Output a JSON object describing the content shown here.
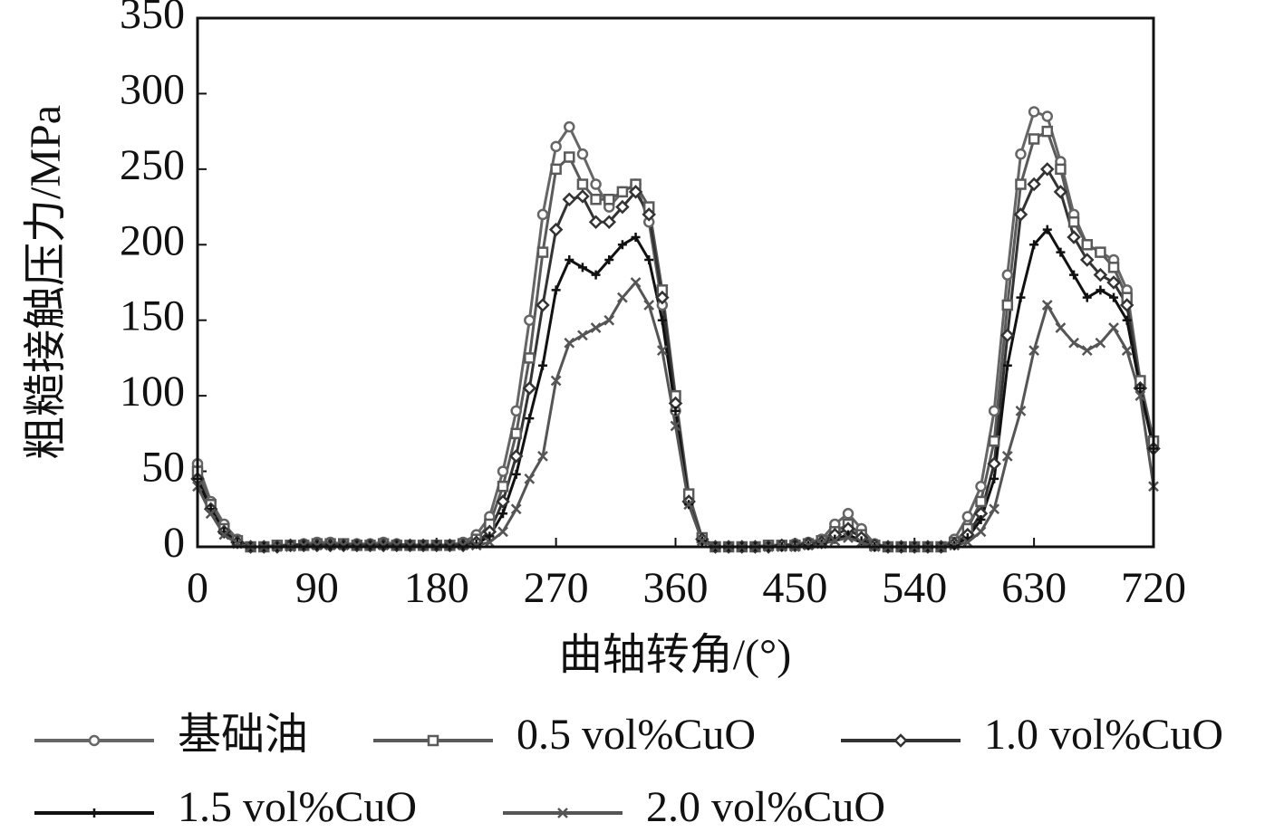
{
  "chart_data": {
    "type": "line",
    "xlabel": "曲轴转角/(°)",
    "ylabel": "粗糙接触压力/MPa",
    "x": [
      0,
      10,
      20,
      30,
      40,
      50,
      60,
      70,
      80,
      90,
      100,
      110,
      120,
      130,
      140,
      150,
      160,
      170,
      180,
      190,
      200,
      210,
      220,
      230,
      240,
      250,
      260,
      270,
      280,
      290,
      300,
      310,
      320,
      330,
      340,
      350,
      360,
      370,
      380,
      390,
      400,
      410,
      420,
      430,
      440,
      450,
      460,
      470,
      480,
      490,
      500,
      510,
      520,
      530,
      540,
      550,
      560,
      570,
      580,
      590,
      600,
      610,
      620,
      630,
      640,
      650,
      660,
      670,
      680,
      690,
      700,
      710,
      720
    ],
    "xlim": [
      0,
      720
    ],
    "xticks": [
      0,
      90,
      180,
      270,
      360,
      450,
      540,
      630,
      720
    ],
    "ylim": [
      0,
      350
    ],
    "yticks": [
      0,
      50,
      100,
      150,
      200,
      250,
      300,
      350
    ],
    "series": [
      {
        "name": "基础油",
        "color": "#666666",
        "marker": "circle",
        "values": [
          55,
          30,
          15,
          5,
          0,
          0,
          1,
          1,
          2,
          3,
          3,
          2,
          2,
          2,
          3,
          2,
          1,
          1,
          1,
          1,
          3,
          8,
          20,
          50,
          90,
          150,
          220,
          265,
          278,
          260,
          240,
          225,
          235,
          240,
          215,
          160,
          90,
          30,
          5,
          0,
          0,
          0,
          0,
          1,
          1,
          2,
          3,
          5,
          15,
          22,
          12,
          2,
          0,
          0,
          0,
          0,
          0,
          5,
          20,
          40,
          90,
          180,
          260,
          288,
          285,
          255,
          220,
          200,
          195,
          190,
          170,
          110,
          70
        ]
      },
      {
        "name": "0.5 vol%CuO",
        "color": "#5a5a5a",
        "marker": "square",
        "values": [
          50,
          28,
          12,
          4,
          0,
          0,
          1,
          1,
          1,
          2,
          2,
          2,
          1,
          1,
          2,
          1,
          1,
          1,
          1,
          1,
          2,
          5,
          15,
          40,
          75,
          125,
          195,
          250,
          258,
          240,
          230,
          230,
          235,
          240,
          225,
          170,
          100,
          35,
          6,
          0,
          0,
          0,
          0,
          1,
          1,
          1,
          2,
          4,
          10,
          15,
          8,
          1,
          0,
          0,
          0,
          0,
          0,
          3,
          12,
          30,
          70,
          160,
          240,
          270,
          275,
          250,
          215,
          200,
          195,
          185,
          165,
          110,
          70
        ]
      },
      {
        "name": "1.0 vol%CuO",
        "color": "#333333",
        "marker": "diamond",
        "values": [
          45,
          25,
          10,
          3,
          0,
          0,
          0,
          1,
          1,
          1,
          1,
          1,
          1,
          1,
          1,
          1,
          1,
          1,
          1,
          1,
          1,
          3,
          10,
          30,
          60,
          105,
          160,
          210,
          230,
          232,
          215,
          215,
          225,
          235,
          220,
          165,
          95,
          30,
          5,
          0,
          0,
          0,
          0,
          0,
          1,
          1,
          2,
          3,
          8,
          12,
          6,
          1,
          0,
          0,
          0,
          0,
          0,
          2,
          8,
          22,
          55,
          140,
          220,
          240,
          250,
          235,
          205,
          190,
          180,
          175,
          160,
          105,
          65
        ]
      },
      {
        "name": "1.5 vol%CuO",
        "color": "#111111",
        "marker": "plus",
        "values": [
          45,
          25,
          10,
          3,
          0,
          0,
          0,
          1,
          1,
          1,
          1,
          1,
          1,
          1,
          1,
          1,
          1,
          1,
          1,
          1,
          1,
          2,
          7,
          22,
          48,
          85,
          120,
          170,
          190,
          185,
          180,
          190,
          200,
          205,
          190,
          150,
          90,
          28,
          4,
          0,
          0,
          0,
          0,
          0,
          0,
          1,
          1,
          2,
          5,
          8,
          4,
          0,
          0,
          0,
          0,
          0,
          0,
          1,
          6,
          18,
          45,
          120,
          165,
          200,
          210,
          195,
          180,
          165,
          170,
          165,
          150,
          105,
          65
        ]
      },
      {
        "name": "2.0 vol%CuO",
        "color": "#555555",
        "marker": "cross",
        "values": [
          40,
          22,
          8,
          2,
          0,
          0,
          0,
          0,
          1,
          1,
          1,
          1,
          1,
          1,
          1,
          1,
          1,
          1,
          1,
          1,
          1,
          1,
          3,
          10,
          25,
          45,
          60,
          110,
          135,
          140,
          145,
          150,
          165,
          175,
          160,
          130,
          80,
          28,
          4,
          0,
          0,
          0,
          0,
          0,
          0,
          0,
          1,
          2,
          4,
          6,
          3,
          0,
          0,
          0,
          0,
          0,
          0,
          1,
          3,
          10,
          25,
          60,
          90,
          130,
          160,
          145,
          135,
          130,
          135,
          145,
          130,
          100,
          40
        ]
      }
    ]
  }
}
